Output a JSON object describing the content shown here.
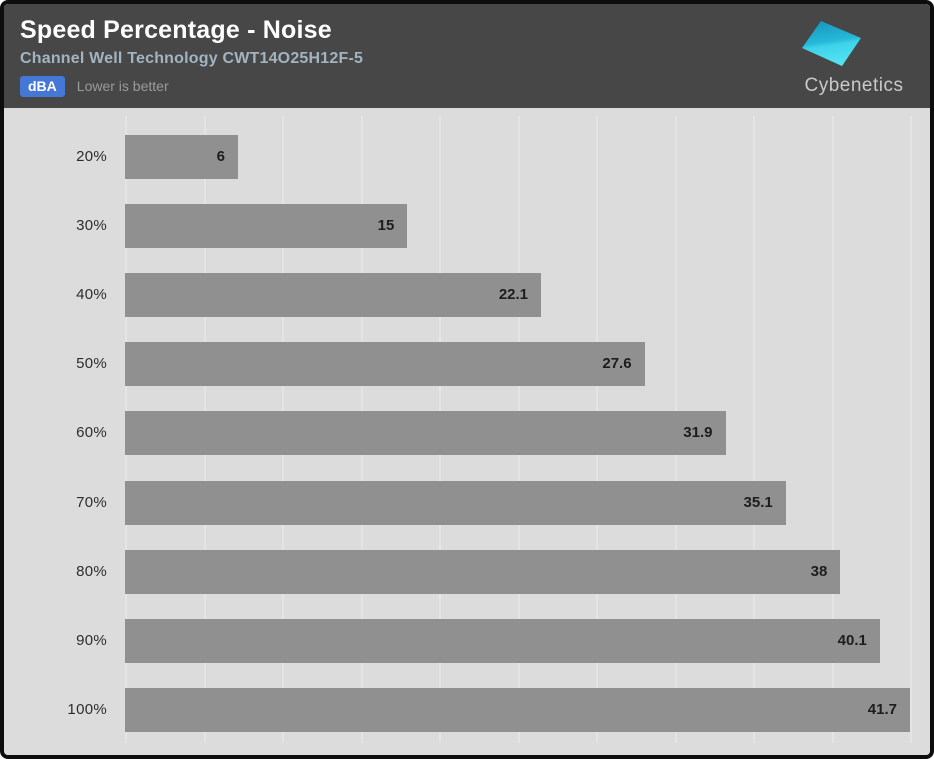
{
  "header": {
    "title": "Speed Percentage - Noise",
    "subtitle": "Channel Well Technology CWT14O25H12F-5",
    "unit_badge": "dBA",
    "note": "Lower is better",
    "logo_text": "Cybenetics"
  },
  "colors": {
    "header_bg": "#474747",
    "title_text": "#ffffff",
    "subtitle_text": "#a2b4c0",
    "badge_bg": "#4477d6",
    "badge_text": "#ffffff",
    "note_text": "#9a9a9a",
    "chart_bg": "#dcdcdc",
    "gridline": "#e4e4e4",
    "bar": "#909090",
    "value_label": "#1d1d1d",
    "category_label": "#2d2d2d",
    "outer_border": "#0d0d0d",
    "logo_text_color": "#c9c9c9",
    "logo_gradient_top": "#1898bf",
    "logo_gradient_bottom": "#55e4f4"
  },
  "chart_data": {
    "type": "bar",
    "orientation": "horizontal",
    "title": "Speed Percentage - Noise",
    "subtitle": "Channel Well Technology CWT14O25H12F-5",
    "unit": "dBA",
    "note": "Lower is better",
    "categories": [
      "20%",
      "30%",
      "40%",
      "50%",
      "60%",
      "70%",
      "80%",
      "90%",
      "100%"
    ],
    "values": [
      6,
      15,
      22.1,
      27.6,
      31.9,
      35.1,
      38,
      40.1,
      41.7
    ],
    "xlabel": "dBA",
    "ylabel": "Speed Percentage",
    "xlim": [
      0,
      41.7
    ],
    "grid": true,
    "grid_divisions": 10,
    "legend": false,
    "value_labels_position": "inside-end"
  }
}
